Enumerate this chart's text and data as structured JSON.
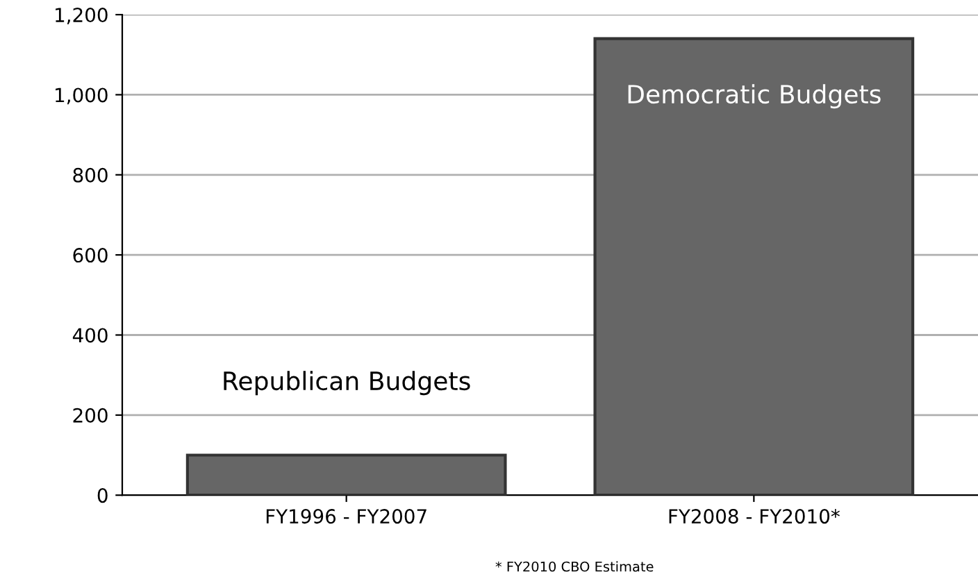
{
  "chart_data": {
    "type": "bar",
    "categories": [
      "FY1996 - FY2007",
      "FY2008 - FY2010*"
    ],
    "values": [
      100,
      1140
    ],
    "color": "#666666",
    "ylim": [
      0,
      1200
    ],
    "yticks": [
      0,
      {
        "value": 200,
        "label": "200"
      },
      {
        "value": 400,
        "label": "400"
      },
      {
        "value": 600,
        "label": "600"
      },
      {
        "value": 800,
        "label": "800"
      },
      {
        "value": 1000,
        "label": "1,000"
      },
      {
        "value": 1200,
        "label": "1,200"
      }
    ],
    "grid": "y",
    "annotations": [
      "Republican Budgets",
      "Democratic Budgets",
      "* FY2010 CBO Estimate"
    ]
  }
}
